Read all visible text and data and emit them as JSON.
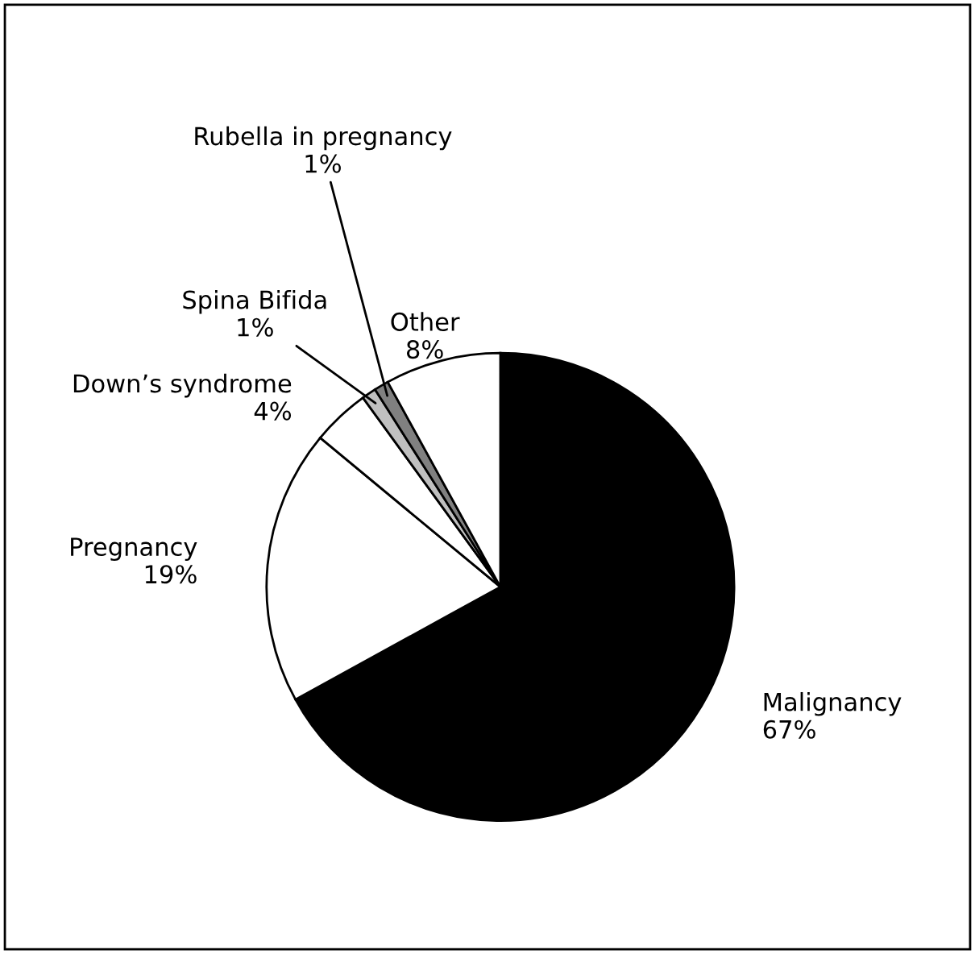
{
  "chart_data": {
    "type": "pie",
    "categories": [
      "Malignancy",
      "Pregnancy",
      "Down’s syndrome",
      "Spina Bifida",
      "Rubella in pregnancy",
      "Other"
    ],
    "values": [
      67,
      19,
      4,
      1,
      1,
      8
    ],
    "value_labels": [
      "67%",
      "19%",
      "4%",
      "1%",
      "1%",
      "8%"
    ],
    "colors": [
      "#000000",
      "#ffffff",
      "#ffffff",
      "#c0c0c0",
      "#808080",
      "#ffffff"
    ]
  }
}
